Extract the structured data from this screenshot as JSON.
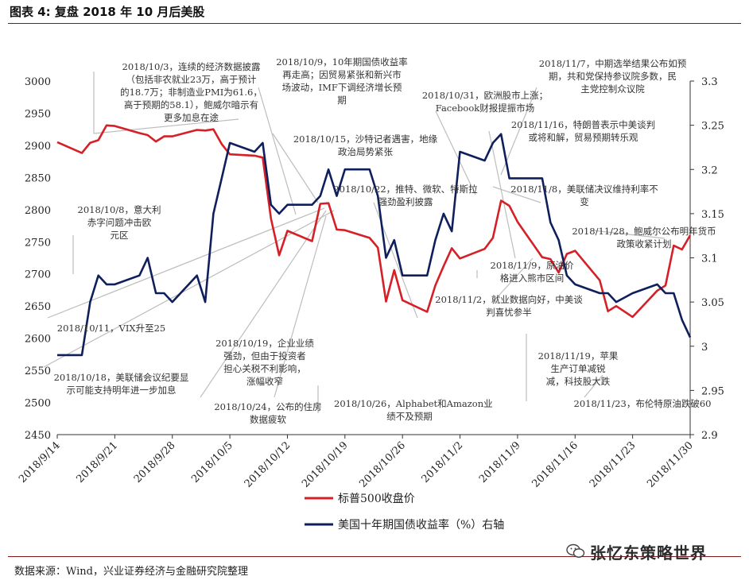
{
  "title": "图表 4: 复盘 2018 年 10 月后美股",
  "source": "数据来源：Wind，兴业证券经济与金融研究院整理",
  "watermark": "张忆东策略世界",
  "colors": {
    "sp500": "#d42026",
    "yield": "#0f1f5c",
    "rule": "#7a1a1a",
    "leader": "#bdbdbd"
  },
  "chart_data": {
    "type": "line",
    "x_ticks": [
      "2018/9/14",
      "2018/9/21",
      "2018/9/28",
      "2018/10/5",
      "2018/10/12",
      "2018/10/19",
      "2018/10/26",
      "2018/11/2",
      "2018/11/9",
      "2018/11/16",
      "2018/11/23",
      "2018/11/30"
    ],
    "y_left": {
      "min": 2450,
      "max": 3000,
      "step": 50
    },
    "y_right": {
      "min": 2.9,
      "max": 3.3,
      "step": 0.05
    },
    "series": [
      {
        "name": "标普500收盘价",
        "axis": "left",
        "x": [
          "2018/9/14",
          "2018/9/17",
          "2018/9/18",
          "2018/9/19",
          "2018/9/20",
          "2018/9/21",
          "2018/9/24",
          "2018/9/25",
          "2018/9/26",
          "2018/9/27",
          "2018/9/28",
          "2018/10/1",
          "2018/10/2",
          "2018/10/3",
          "2018/10/4",
          "2018/10/5",
          "2018/10/8",
          "2018/10/9",
          "2018/10/10",
          "2018/10/11",
          "2018/10/12",
          "2018/10/15",
          "2018/10/16",
          "2018/10/17",
          "2018/10/18",
          "2018/10/19",
          "2018/10/22",
          "2018/10/23",
          "2018/10/24",
          "2018/10/25",
          "2018/10/26",
          "2018/10/29",
          "2018/10/30",
          "2018/10/31",
          "2018/11/1",
          "2018/11/2",
          "2018/11/5",
          "2018/11/6",
          "2018/11/7",
          "2018/11/8",
          "2018/11/9",
          "2018/11/12",
          "2018/11/13",
          "2018/11/14",
          "2018/11/15",
          "2018/11/16",
          "2018/11/19",
          "2018/11/20",
          "2018/11/21",
          "2018/11/23",
          "2018/11/26",
          "2018/11/27",
          "2018/11/28",
          "2018/11/29",
          "2018/11/30"
        ],
        "y": [
          2905,
          2888,
          2904,
          2908,
          2931,
          2930,
          2919,
          2916,
          2906,
          2914,
          2914,
          2924,
          2923,
          2925,
          2902,
          2886,
          2884,
          2881,
          2786,
          2729,
          2767,
          2751,
          2809,
          2810,
          2769,
          2768,
          2756,
          2741,
          2657,
          2706,
          2659,
          2641,
          2682,
          2712,
          2740,
          2724,
          2739,
          2756,
          2814,
          2806,
          2781,
          2726,
          2723,
          2702,
          2731,
          2736,
          2690,
          2642,
          2650,
          2633,
          2674,
          2682,
          2744,
          2738,
          2760
        ]
      },
      {
        "name": "美国十年期国债收益率（%）右轴",
        "axis": "right",
        "x": [
          "2018/9/14",
          "2018/9/17",
          "2018/9/18",
          "2018/9/19",
          "2018/9/20",
          "2018/9/21",
          "2018/9/24",
          "2018/9/25",
          "2018/9/26",
          "2018/9/27",
          "2018/9/28",
          "2018/10/1",
          "2018/10/2",
          "2018/10/3",
          "2018/10/4",
          "2018/10/5",
          "2018/10/8",
          "2018/10/9",
          "2018/10/10",
          "2018/10/11",
          "2018/10/12",
          "2018/10/15",
          "2018/10/16",
          "2018/10/17",
          "2018/10/18",
          "2018/10/19",
          "2018/10/22",
          "2018/10/23",
          "2018/10/24",
          "2018/10/25",
          "2018/10/26",
          "2018/10/29",
          "2018/10/30",
          "2018/10/31",
          "2018/11/1",
          "2018/11/2",
          "2018/11/5",
          "2018/11/6",
          "2018/11/7",
          "2018/11/8",
          "2018/11/9",
          "2018/11/12",
          "2018/11/13",
          "2018/11/14",
          "2018/11/15",
          "2018/11/16",
          "2018/11/19",
          "2018/11/20",
          "2018/11/21",
          "2018/11/23",
          "2018/11/26",
          "2018/11/27",
          "2018/11/28",
          "2018/11/29",
          "2018/11/30"
        ],
        "y": [
          2.99,
          2.99,
          3.05,
          3.08,
          3.07,
          3.07,
          3.08,
          3.1,
          3.06,
          3.06,
          3.05,
          3.08,
          3.05,
          3.15,
          3.19,
          3.23,
          3.22,
          3.23,
          3.16,
          3.15,
          3.16,
          3.16,
          3.17,
          3.2,
          3.17,
          3.2,
          3.2,
          3.17,
          3.1,
          3.12,
          3.08,
          3.08,
          3.12,
          3.15,
          3.13,
          3.22,
          3.21,
          3.23,
          3.24,
          3.19,
          3.19,
          3.19,
          3.14,
          3.12,
          3.08,
          3.07,
          3.06,
          3.06,
          3.05,
          3.06,
          3.07,
          3.06,
          3.06,
          3.03,
          3.01
        ]
      }
    ],
    "legend": [
      {
        "label": "标普500收盘价",
        "color": "#d42026"
      },
      {
        "label": "美国十年期国债收益率（%）右轴",
        "color": "#0f1f5c"
      }
    ],
    "legend_position": "bottom-right",
    "grid": false,
    "annotations": [
      "2018/10/3，连续的经济数据披露\n（包括非农就业23万，高于预计\n的18.7万；非制造业PMI为61.6，\n高于预期的58.1），鲍威尔暗示有\n更多加息在途",
      "2018/10/9，10年期国债收益率\n再走高；因贸易紧张和新兴市\n场波动，IMF下调经济增长预\n期",
      "2018/10/31，欧洲股市上涨；\nFacebook财报提振市场",
      "2018/11/7，中期选举结果公布如预\n期，共和党保持参议院多数，民\n主党控制众议院",
      "2018/10/15，沙特记者遇害，地缘\n政治局势紧张",
      "2018/11/16，特朗普表示中美谈判\n或将和解，贸易预期转乐观",
      "2018/10/22，推特、微软、特斯拉\n强劲盈利披露",
      "2018/11/8，美联储决议维持利率不\n变",
      "2018/10/8，意大利\n赤字问题冲击欧\n元区",
      "2018/11/28，鲍威尔公布明年货币\n政策收紧计划",
      "2018/11/9，原油价\n格进入熊市区间",
      "2018/11/2，就业数据向好，中美谈\n判喜忧参半",
      "2018/10/11，VIX升至25",
      "2018/10/19，企业业绩\n强劲，但由于投资者\n担心关税不利影响，\n涨幅收窄",
      "2018/11/19，苹果\n生产订单减锐\n减，科技股大跌",
      "2018/10/18，美联储会议纪要显\n示可能支持明年进一步加息",
      "2018/10/26，Alphabet和Amazon业\n绩不及预期",
      "2018/10/24，公布的住房\n数据疲软",
      "2018/11/23，布伦特原油跌破60"
    ]
  }
}
